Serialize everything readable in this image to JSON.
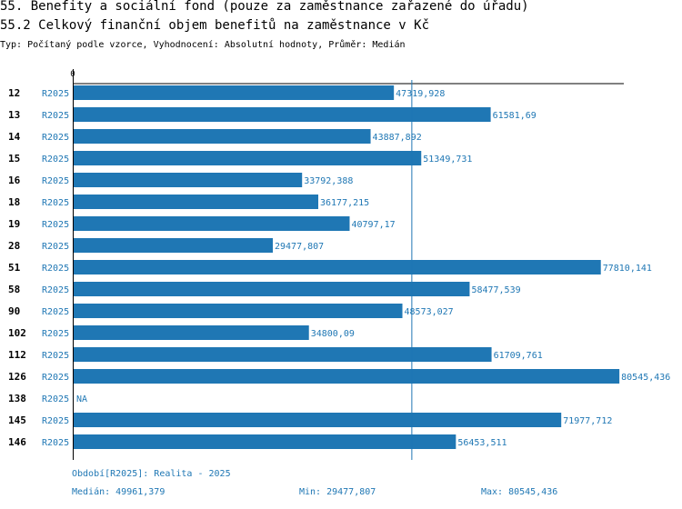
{
  "header": {
    "title": "55. Benefity a sociální fond (pouze za zaměstnance zařazené do úřadu)",
    "subtitle": "55.2 Celkový finanční objem benefitů na zaměstnance v Kč",
    "meta": "Typ: Počítaný podle vzorce, Vyhodnocení: Absolutní hodnoty, Průměr: Medián"
  },
  "chart_data": {
    "type": "bar",
    "orientation": "horizontal",
    "zero_label": "0",
    "xlim": [
      0,
      82000
    ],
    "categories": [
      "12",
      "13",
      "14",
      "15",
      "16",
      "18",
      "19",
      "28",
      "51",
      "58",
      "90",
      "102",
      "112",
      "126",
      "138",
      "145",
      "146"
    ],
    "series_label": "R2025",
    "values": [
      47319.928,
      61581.69,
      43887.892,
      51349.731,
      33792.388,
      36177.215,
      40797.17,
      29477.807,
      77810.141,
      58477.539,
      48573.027,
      34800.09,
      61709.761,
      80545.436,
      null,
      71977.712,
      56453.511
    ],
    "value_labels": [
      "47319,928",
      "61581,69",
      "43887,892",
      "51349,731",
      "33792,388",
      "36177,215",
      "40797,17",
      "29477,807",
      "77810,141",
      "58477,539",
      "48573,027",
      "34800,09",
      "61709,761",
      "80545,436",
      "NA",
      "71977,712",
      "56453,511"
    ],
    "median": 49961.379,
    "bar_color": "#1f77b4",
    "grid": false
  },
  "footer": {
    "period": "Období[R2025]: Realita - 2025",
    "median": "Medián: 49961,379",
    "min": "Min: 29477,807",
    "max": "Max: 80545,436"
  }
}
